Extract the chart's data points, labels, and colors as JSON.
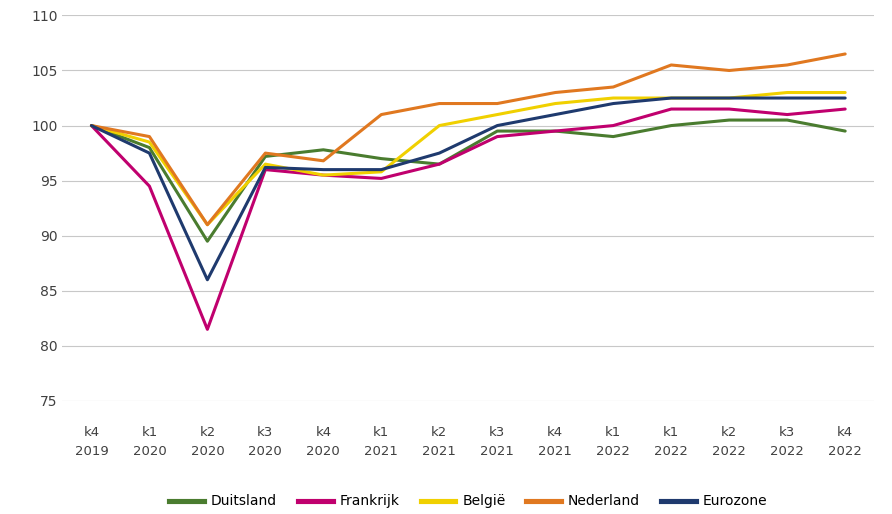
{
  "x_labels_top": [
    "k4",
    "k1",
    "k2",
    "k3",
    "k4",
    "k1",
    "k2",
    "k3",
    "k4",
    "k1",
    "k1",
    "k2",
    "k3",
    "k4"
  ],
  "x_labels_bot": [
    "2019",
    "2020",
    "2020",
    "2020",
    "2020",
    "2021",
    "2021",
    "2021",
    "2021",
    "2022",
    "2022",
    "2022",
    "2022",
    "2022"
  ],
  "series": {
    "Duitsland": {
      "color": "#4a7c2f",
      "values": [
        100.0,
        98.0,
        89.5,
        97.2,
        97.8,
        97.0,
        96.5,
        99.5,
        99.5,
        99.0,
        100.0,
        100.5,
        100.5,
        99.5
      ]
    },
    "Frankrijk": {
      "color": "#c0006e",
      "values": [
        100.0,
        94.5,
        81.5,
        96.0,
        95.5,
        95.2,
        96.5,
        99.0,
        99.5,
        100.0,
        101.5,
        101.5,
        101.0,
        101.5
      ]
    },
    "België": {
      "color": "#f0d000",
      "values": [
        100.0,
        98.5,
        91.0,
        96.5,
        95.5,
        95.8,
        100.0,
        101.0,
        102.0,
        102.5,
        102.5,
        102.5,
        103.0,
        103.0
      ]
    },
    "Nederland": {
      "color": "#e07820",
      "values": [
        100.0,
        99.0,
        91.0,
        97.5,
        96.8,
        101.0,
        102.0,
        102.0,
        103.0,
        103.5,
        105.5,
        105.0,
        105.5,
        106.5
      ]
    },
    "Eurozone": {
      "color": "#1f3a6e",
      "values": [
        100.0,
        97.5,
        86.0,
        96.2,
        96.0,
        96.0,
        97.5,
        100.0,
        101.0,
        102.0,
        102.5,
        102.5,
        102.5,
        102.5
      ]
    }
  },
  "ylim": [
    75,
    110
  ],
  "yticks": [
    75,
    80,
    85,
    90,
    95,
    100,
    105,
    110
  ],
  "background_color": "#ffffff",
  "grid_color": "#c8c8c8",
  "linewidth": 2.2,
  "legend_order": [
    "Duitsland",
    "Frankrijk",
    "België",
    "Nederland",
    "Eurozone"
  ]
}
